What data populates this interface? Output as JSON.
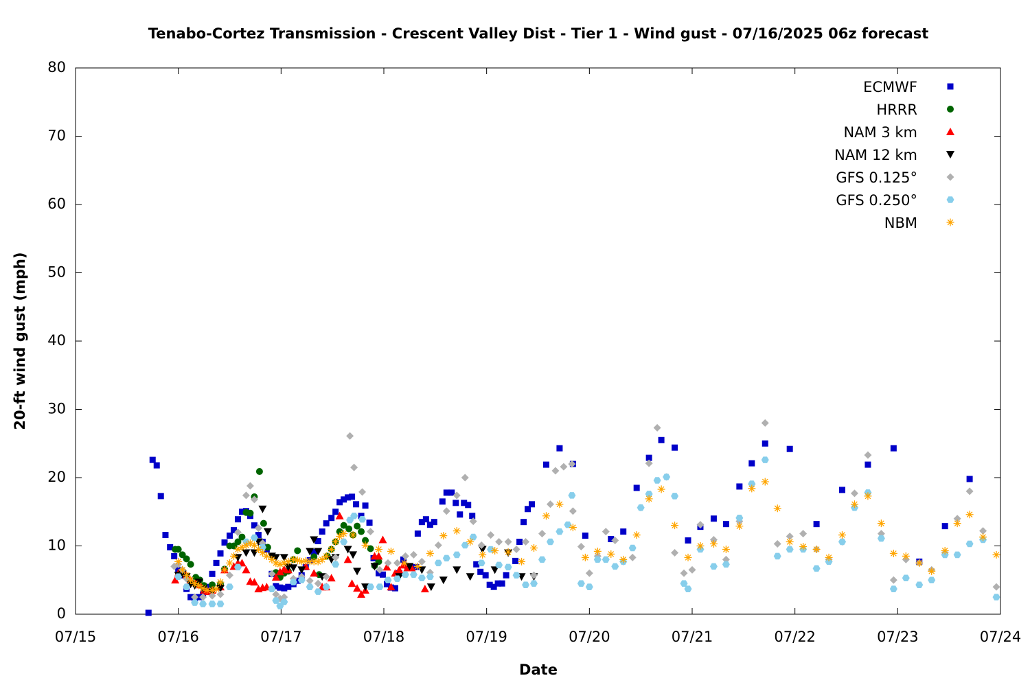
{
  "chart_data": {
    "type": "scatter",
    "title": "Tenabo-Cortez Transmission - Crescent Valley Dist - Tier 1 - Wind gust - 07/16/2025 06z forecast",
    "x_label": "Date",
    "y_label": "20-ft wind gust (mph)",
    "xlim": [
      0,
      9
    ],
    "xticks": [
      {
        "value": 0,
        "label": "07/15"
      },
      {
        "value": 1,
        "label": "07/16"
      },
      {
        "value": 2,
        "label": "07/17"
      },
      {
        "value": 3,
        "label": "07/18"
      },
      {
        "value": 4,
        "label": "07/19"
      },
      {
        "value": 5,
        "label": "07/20"
      },
      {
        "value": 6,
        "label": "07/21"
      },
      {
        "value": 7,
        "label": "07/22"
      },
      {
        "value": 8,
        "label": "07/23"
      },
      {
        "value": 9,
        "label": "07/24"
      }
    ],
    "ylim": [
      0,
      80
    ],
    "yticks": [
      0,
      10,
      20,
      30,
      40,
      50,
      60,
      70,
      80
    ],
    "legend": "upper right",
    "series": [
      {
        "name": "ECMWF",
        "color": "#0000c8",
        "marker": "square",
        "x": [
          0.71,
          0.75,
          0.79,
          0.83,
          0.875,
          0.92,
          0.96,
          1.0,
          1.04,
          1.08,
          1.12,
          1.16,
          1.2,
          1.24,
          1.29,
          1.33,
          1.37,
          1.41,
          1.45,
          1.5,
          1.54,
          1.58,
          1.62,
          1.66,
          1.7,
          1.74,
          1.78,
          1.82,
          1.86,
          1.91,
          1.95,
          1.99,
          2.03,
          2.07,
          2.12,
          2.16,
          2.2,
          2.24,
          2.28,
          2.32,
          2.36,
          2.4,
          2.44,
          2.49,
          2.53,
          2.57,
          2.61,
          2.65,
          2.69,
          2.73,
          2.78,
          2.82,
          2.86,
          2.9,
          2.95,
          2.99,
          3.03,
          3.07,
          3.11,
          3.15,
          3.19,
          3.23,
          3.27,
          3.31,
          3.33,
          3.37,
          3.41,
          3.45,
          3.49,
          3.57,
          3.61,
          3.66,
          3.7,
          3.74,
          3.78,
          3.82,
          3.86,
          3.9,
          3.94,
          3.99,
          4.03,
          4.07,
          4.11,
          4.15,
          4.19,
          4.28,
          4.32,
          4.36,
          4.4,
          4.44,
          4.58,
          4.71,
          4.84,
          4.96,
          5.21,
          5.33,
          5.46,
          5.58,
          5.7,
          5.83,
          5.96,
          6.08,
          6.21,
          6.33,
          6.46,
          6.58,
          6.71,
          6.95,
          7.21,
          7.46,
          7.71,
          7.96,
          8.21,
          8.46,
          8.7
        ],
        "values": [
          0.2,
          22.6,
          21.8,
          17.3,
          11.6,
          9.8,
          8.5,
          6.5,
          5.7,
          3.7,
          2.5,
          2.3,
          2.5,
          2.9,
          4.0,
          5.9,
          7.5,
          8.9,
          10.5,
          11.5,
          12.3,
          13.9,
          15.0,
          15.1,
          14.4,
          13.0,
          11.6,
          10.6,
          9.5,
          5.9,
          4.1,
          3.9,
          3.8,
          4.0,
          4.4,
          4.9,
          5.7,
          6.9,
          7.9,
          9.1,
          10.7,
          12.1,
          13.3,
          14.1,
          15.0,
          16.4,
          16.8,
          17.1,
          17.2,
          16.1,
          14.4,
          15.9,
          13.4,
          8.2,
          6.0,
          5.8,
          4.4,
          3.9,
          3.8,
          6.0,
          8.0,
          6.8,
          6.8,
          6.9,
          11.8,
          13.5,
          13.9,
          13.1,
          13.5,
          16.5,
          17.8,
          17.8,
          16.3,
          14.6,
          16.3,
          16.0,
          14.4,
          7.3,
          6.2,
          5.7,
          4.3,
          4.0,
          4.5,
          4.5,
          5.7,
          7.8,
          10.6,
          13.5,
          15.4,
          16.1,
          21.9,
          24.3,
          22.0,
          11.5,
          11.0,
          12.1,
          18.5,
          22.9,
          25.5,
          24.4,
          10.8,
          12.8,
          14.0,
          13.2,
          18.7,
          22.1,
          25.0,
          24.2,
          13.2,
          18.2,
          21.9,
          24.3,
          7.7,
          12.9,
          19.8
        ]
      },
      {
        "name": "HRRR",
        "color": "#006400",
        "marker": "circle",
        "x": [
          0.97,
          1.0,
          1.04,
          1.08,
          1.12,
          1.17,
          1.21,
          1.25,
          1.33,
          1.41,
          1.45,
          1.5,
          1.54,
          1.58,
          1.62,
          1.66,
          1.7,
          1.74,
          1.79,
          1.83,
          1.87,
          1.95,
          1.99,
          2.03,
          2.07,
          2.12,
          2.16,
          2.32,
          2.37,
          2.45,
          2.49,
          2.53,
          2.57,
          2.61,
          2.66,
          2.7,
          2.74,
          2.78,
          2.82,
          2.87,
          2.91,
          2.95
        ],
        "values": [
          9.5,
          9.5,
          8.7,
          8.1,
          7.3,
          5.4,
          5.0,
          4.2,
          4.3,
          4.4,
          6.6,
          10.0,
          10.0,
          10.6,
          11.3,
          14.9,
          14.8,
          17.2,
          20.9,
          13.3,
          9.8,
          6.1,
          5.4,
          6.0,
          6.3,
          8.0,
          9.3,
          8.4,
          5.8,
          8.5,
          9.5,
          10.6,
          12.1,
          13.0,
          12.5,
          11.6,
          12.9,
          12.1,
          10.8,
          9.6,
          7.1,
          7.7
        ]
      },
      {
        "name": "NAM 3 km",
        "color": "#ff0000",
        "marker": "triangle-up",
        "x": [
          0.97,
          1.0,
          1.04,
          1.08,
          1.12,
          1.17,
          1.21,
          1.25,
          1.29,
          1.33,
          1.41,
          1.45,
          1.54,
          1.58,
          1.62,
          1.66,
          1.7,
          1.74,
          1.78,
          1.82,
          1.86,
          1.95,
          1.99,
          2.03,
          2.07,
          2.24,
          2.32,
          2.4,
          2.44,
          2.49,
          2.57,
          2.65,
          2.69,
          2.74,
          2.78,
          2.82,
          2.91,
          2.95,
          2.99,
          3.03,
          3.07,
          3.11,
          3.15,
          3.19,
          3.23,
          3.27,
          3.4
        ],
        "values": [
          5.0,
          6.0,
          6.5,
          5.7,
          5.0,
          4.6,
          4.3,
          3.5,
          3.3,
          3.5,
          4.0,
          6.5,
          7.0,
          7.5,
          7.5,
          6.5,
          4.8,
          4.7,
          3.7,
          3.9,
          4.0,
          5.4,
          6.2,
          6.6,
          6.5,
          7.0,
          6.0,
          4.0,
          4.0,
          5.3,
          14.4,
          8.0,
          4.5,
          3.8,
          2.9,
          3.5,
          8.5,
          8.5,
          10.9,
          6.9,
          4.0,
          6.0,
          6.5,
          7.2,
          6.8,
          6.8,
          3.7
        ]
      },
      {
        "name": "NAM 12 km",
        "color": "#000000",
        "marker": "triangle-down",
        "x": [
          1.0,
          1.04,
          1.08,
          1.12,
          1.16,
          1.2,
          1.24,
          1.33,
          1.41,
          1.58,
          1.66,
          1.74,
          1.78,
          1.82,
          1.87,
          1.91,
          1.95,
          2.03,
          2.07,
          2.12,
          2.2,
          2.28,
          2.32,
          2.36,
          2.4,
          2.49,
          2.53,
          2.65,
          2.7,
          2.74,
          2.82,
          2.91,
          3.15,
          3.25,
          3.37,
          3.46,
          3.58,
          3.71,
          3.84,
          3.96,
          4.08,
          4.21,
          4.34,
          4.46
        ],
        "values": [
          5.7,
          5.9,
          5.5,
          4.4,
          4.2,
          4.7,
          3.7,
          3.3,
          3.8,
          8.3,
          9.0,
          9.0,
          10.6,
          15.4,
          12.1,
          8.5,
          8.3,
          8.3,
          6.9,
          6.8,
          6.5,
          9.2,
          10.9,
          9.2,
          5.5,
          8.0,
          8.3,
          9.5,
          8.7,
          6.3,
          4.0,
          7.0,
          5.5,
          7.0,
          6.5,
          4.0,
          5.0,
          6.5,
          5.5,
          9.5,
          6.5,
          9.0,
          5.5,
          5.5
        ]
      },
      {
        "name": "GFS 0.125°",
        "color": "#b0b0b0",
        "marker": "diamond",
        "x": [
          0.96,
          1.0,
          1.04,
          1.08,
          1.16,
          1.24,
          1.33,
          1.41,
          1.5,
          1.58,
          1.66,
          1.7,
          1.74,
          1.78,
          1.82,
          1.91,
          1.95,
          1.99,
          2.03,
          2.12,
          2.2,
          2.28,
          2.36,
          2.44,
          2.53,
          2.61,
          2.67,
          2.71,
          2.79,
          2.87,
          2.96,
          3.04,
          3.13,
          3.21,
          3.29,
          3.37,
          3.45,
          3.53,
          3.61,
          3.71,
          3.79,
          3.87,
          3.95,
          4.04,
          4.12,
          4.21,
          4.29,
          4.38,
          4.46,
          4.54,
          4.62,
          4.67,
          4.75,
          4.83,
          4.84,
          4.92,
          5.0,
          5.08,
          5.16,
          5.25,
          5.33,
          5.42,
          5.5,
          5.58,
          5.66,
          5.75,
          5.83,
          5.92,
          6.0,
          6.08,
          6.21,
          6.33,
          6.46,
          6.58,
          6.71,
          6.83,
          6.95,
          7.08,
          7.21,
          7.33,
          7.46,
          7.58,
          7.71,
          7.84,
          7.96,
          8.08,
          8.21,
          8.33,
          8.46,
          8.58,
          8.7,
          8.83,
          8.96
        ],
        "values": [
          7.0,
          7.3,
          6.5,
          5.2,
          2.5,
          2.5,
          2.7,
          2.9,
          5.7,
          12.0,
          17.4,
          18.8,
          16.8,
          12.6,
          10.4,
          5.9,
          2.9,
          2.3,
          2.5,
          5.2,
          5.5,
          4.9,
          4.5,
          5.5,
          8.3,
          10.6,
          26.1,
          21.5,
          17.9,
          12.1,
          6.5,
          7.5,
          7.5,
          8.5,
          8.7,
          7.7,
          6.1,
          10.1,
          15.1,
          17.4,
          20.0,
          13.6,
          10.1,
          11.6,
          10.6,
          10.6,
          9.5,
          10.6,
          5.7,
          11.8,
          16.1,
          21.0,
          21.6,
          22.0,
          15.1,
          9.9,
          6.0,
          8.5,
          12.1,
          10.8,
          7.7,
          8.3,
          15.6,
          22.1,
          27.3,
          20.1,
          9.0,
          6.0,
          6.5,
          13.1,
          10.9,
          8.0,
          13.6,
          19.0,
          28.0,
          10.3,
          11.4,
          11.8,
          9.5,
          8.0,
          10.6,
          17.7,
          23.3,
          11.8,
          5.0,
          8.0,
          7.5,
          6.5,
          9.0,
          14.0,
          18.0,
          12.2,
          4.0
        ]
      },
      {
        "name": "GFS 0.250°",
        "color": "#87ceeb",
        "marker": "hexagon",
        "x": [
          1.0,
          1.08,
          1.16,
          1.24,
          1.33,
          1.41,
          1.5,
          1.58,
          1.66,
          1.74,
          1.82,
          1.91,
          1.95,
          1.99,
          2.03,
          2.12,
          2.2,
          2.28,
          2.36,
          2.44,
          2.53,
          2.61,
          2.67,
          2.71,
          2.79,
          2.87,
          2.96,
          3.04,
          3.13,
          3.21,
          3.29,
          3.37,
          3.45,
          3.53,
          3.61,
          3.71,
          3.79,
          3.87,
          3.95,
          4.04,
          4.12,
          4.21,
          4.29,
          4.38,
          4.46,
          4.54,
          4.62,
          4.71,
          4.79,
          4.83,
          4.92,
          5.0,
          5.08,
          5.16,
          5.25,
          5.33,
          5.42,
          5.5,
          5.58,
          5.66,
          5.75,
          5.83,
          5.92,
          5.96,
          6.08,
          6.21,
          6.33,
          6.46,
          6.58,
          6.71,
          6.83,
          6.95,
          7.08,
          7.21,
          7.33,
          7.46,
          7.58,
          7.71,
          7.84,
          7.96,
          8.08,
          8.21,
          8.33,
          8.46,
          8.58,
          8.7,
          8.83,
          8.96
        ],
        "values": [
          5.5,
          4.0,
          1.7,
          1.5,
          1.5,
          1.5,
          4.0,
          6.9,
          10.6,
          11.2,
          9.8,
          3.7,
          2.0,
          1.2,
          1.8,
          4.7,
          5.0,
          4.0,
          3.3,
          4.0,
          7.3,
          10.6,
          13.8,
          14.4,
          13.9,
          4.0,
          4.0,
          5.0,
          5.2,
          5.8,
          5.8,
          5.3,
          5.5,
          7.5,
          8.2,
          8.7,
          10.1,
          11.3,
          7.5,
          9.5,
          7.2,
          6.9,
          5.7,
          4.3,
          4.5,
          8.0,
          10.6,
          12.1,
          13.1,
          17.4,
          4.5,
          4.0,
          8.0,
          8.0,
          7.0,
          7.7,
          9.7,
          15.6,
          17.6,
          19.6,
          20.1,
          17.3,
          4.5,
          3.7,
          9.5,
          7.0,
          7.3,
          14.1,
          19.1,
          22.6,
          8.5,
          9.5,
          9.5,
          6.7,
          7.7,
          10.6,
          15.6,
          17.8,
          11.1,
          3.7,
          5.3,
          4.3,
          5.0,
          8.7,
          8.7,
          10.3,
          10.9,
          2.5
        ]
      },
      {
        "name": "NBM",
        "color": "#ffa500",
        "marker": "asterisk",
        "x": [
          1.0,
          1.04,
          1.08,
          1.12,
          1.16,
          1.2,
          1.24,
          1.28,
          1.33,
          1.37,
          1.41,
          1.45,
          1.5,
          1.54,
          1.58,
          1.62,
          1.66,
          1.7,
          1.74,
          1.78,
          1.82,
          1.86,
          1.91,
          1.95,
          1.99,
          2.03,
          2.07,
          2.12,
          2.16,
          2.2,
          2.24,
          2.28,
          2.32,
          2.36,
          2.4,
          2.44,
          2.49,
          2.53,
          2.57,
          2.61,
          2.7,
          2.82,
          2.95,
          3.07,
          3.2,
          3.33,
          3.45,
          3.58,
          3.71,
          3.84,
          3.96,
          4.08,
          4.21,
          4.34,
          4.46,
          4.58,
          4.71,
          4.84,
          4.96,
          5.08,
          5.21,
          5.33,
          5.46,
          5.58,
          5.7,
          5.83,
          5.96,
          6.08,
          6.21,
          6.33,
          6.46,
          6.58,
          6.71,
          6.83,
          6.95,
          7.08,
          7.21,
          7.33,
          7.46,
          7.58,
          7.71,
          7.84,
          7.96,
          8.08,
          8.21,
          8.33,
          8.46,
          8.58,
          8.7,
          8.83,
          8.96
        ],
        "values": [
          7.7,
          6.5,
          5.7,
          5.0,
          4.5,
          4.2,
          3.8,
          3.5,
          3.5,
          3.7,
          4.7,
          6.5,
          7.5,
          8.5,
          9.5,
          9.8,
          10.1,
          10.4,
          10.1,
          9.5,
          9.0,
          8.5,
          8.0,
          7.5,
          7.3,
          7.5,
          7.7,
          8.0,
          7.9,
          7.7,
          7.8,
          7.7,
          7.7,
          7.7,
          8.0,
          8.5,
          9.5,
          10.6,
          11.4,
          11.8,
          11.6,
          10.1,
          9.5,
          9.2,
          7.5,
          7.0,
          8.9,
          11.5,
          12.2,
          10.6,
          8.7,
          9.3,
          9.1,
          7.7,
          9.7,
          14.4,
          16.1,
          12.7,
          8.3,
          9.2,
          8.8,
          8.0,
          11.6,
          16.9,
          18.3,
          13.0,
          8.3,
          10.0,
          10.3,
          9.5,
          12.9,
          18.4,
          19.4,
          15.5,
          10.6,
          9.9,
          9.5,
          8.3,
          11.6,
          16.1,
          17.3,
          13.3,
          8.9,
          8.5,
          7.5,
          6.3,
          9.3,
          13.3,
          14.6,
          11.3,
          8.7
        ]
      }
    ]
  }
}
